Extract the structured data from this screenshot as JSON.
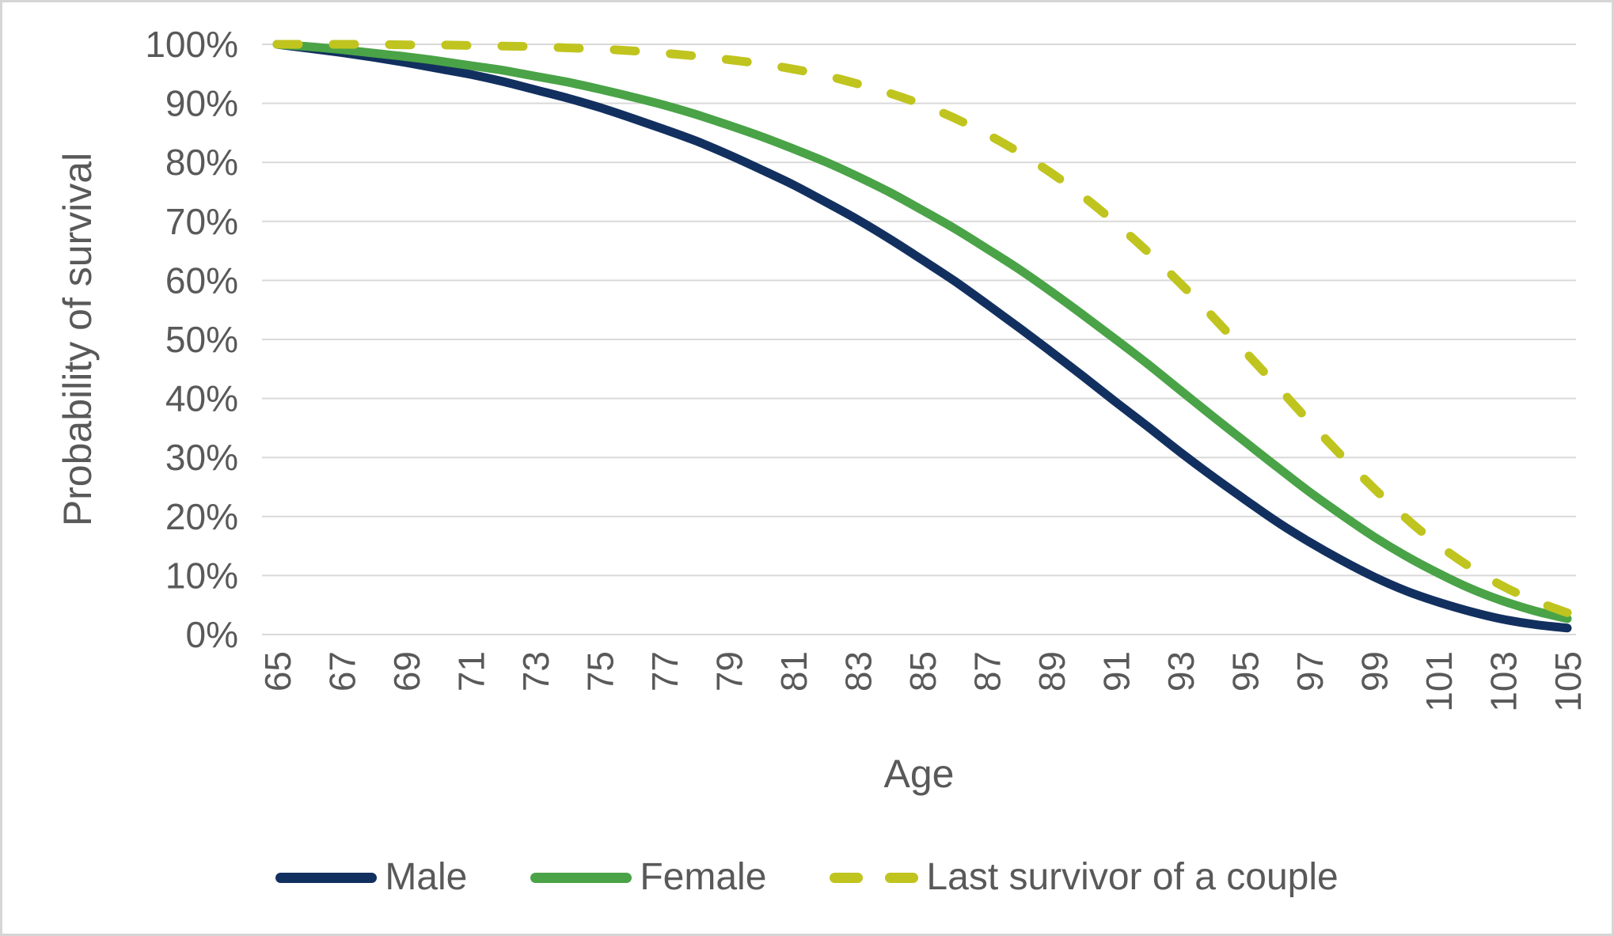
{
  "page": {
    "background": "#ffffff",
    "frame_border_color": "#d6d6d6",
    "text_color": "#595959",
    "gridline_color": "#d9d9d9"
  },
  "chart_data": {
    "type": "line",
    "title": "",
    "xlabel": "Age",
    "ylabel": "Probability of survival",
    "grid": "horizontal",
    "legend_position": "bottom",
    "xlim": [
      65,
      105
    ],
    "ylim": [
      0,
      100
    ],
    "x_tick_interval": 2,
    "y_tick_interval": 10,
    "y_tick_suffix": "%",
    "x": [
      65,
      66,
      67,
      68,
      69,
      70,
      71,
      72,
      73,
      74,
      75,
      76,
      77,
      78,
      79,
      80,
      81,
      82,
      83,
      84,
      85,
      86,
      87,
      88,
      89,
      90,
      91,
      92,
      93,
      94,
      95,
      96,
      97,
      98,
      99,
      100,
      101,
      102,
      103,
      104,
      105
    ],
    "x_tick_labels": [
      "65",
      "67",
      "69",
      "71",
      "73",
      "75",
      "77",
      "79",
      "81",
      "83",
      "85",
      "87",
      "89",
      "91",
      "93",
      "95",
      "97",
      "99",
      "101",
      "103",
      "105"
    ],
    "y_tick_labels": [
      "0%",
      "10%",
      "20%",
      "30%",
      "40%",
      "50%",
      "60%",
      "70%",
      "80%",
      "90%",
      "100%"
    ],
    "series": [
      {
        "name": "Male",
        "color": "#12305f",
        "dash": "solid",
        "values": [
          100,
          99.3,
          98.6,
          97.8,
          96.9,
          95.9,
          94.9,
          93.7,
          92.3,
          90.9,
          89.3,
          87.5,
          85.6,
          83.6,
          81.3,
          78.8,
          76.2,
          73.3,
          70.3,
          67.0,
          63.5,
          59.9,
          56.0,
          52.0,
          47.9,
          43.7,
          39.4,
          35.2,
          30.9,
          26.8,
          22.9,
          19.1,
          15.7,
          12.6,
          9.8,
          7.4,
          5.5,
          3.9,
          2.6,
          1.7,
          1.1
        ]
      },
      {
        "name": "Female",
        "color": "#4aa347",
        "dash": "solid",
        "values": [
          100,
          99.6,
          99.1,
          98.5,
          97.9,
          97.2,
          96.4,
          95.6,
          94.6,
          93.6,
          92.4,
          91.1,
          89.7,
          88.1,
          86.3,
          84.4,
          82.3,
          80.1,
          77.6,
          74.9,
          71.9,
          68.8,
          65.4,
          61.9,
          58.1,
          54.1,
          50.0,
          45.8,
          41.4,
          37.0,
          32.7,
          28.4,
          24.2,
          20.3,
          16.6,
          13.3,
          10.4,
          7.8,
          5.7,
          4.0,
          2.7
        ]
      },
      {
        "name": "Last survivor of a couple",
        "color": "#c0c41e",
        "dash": "dashed",
        "values": [
          100,
          100,
          100,
          100,
          99.9,
          99.9,
          99.8,
          99.7,
          99.6,
          99.4,
          99.2,
          98.9,
          98.5,
          98.0,
          97.4,
          96.7,
          95.8,
          94.7,
          93.3,
          91.7,
          89.8,
          87.5,
          84.8,
          81.7,
          78.2,
          74.2,
          69.7,
          64.8,
          59.5,
          53.9,
          48.0,
          42.1,
          36.1,
          30.3,
          24.8,
          19.7,
          15.2,
          11.4,
          8.2,
          5.7,
          3.7
        ]
      }
    ]
  }
}
